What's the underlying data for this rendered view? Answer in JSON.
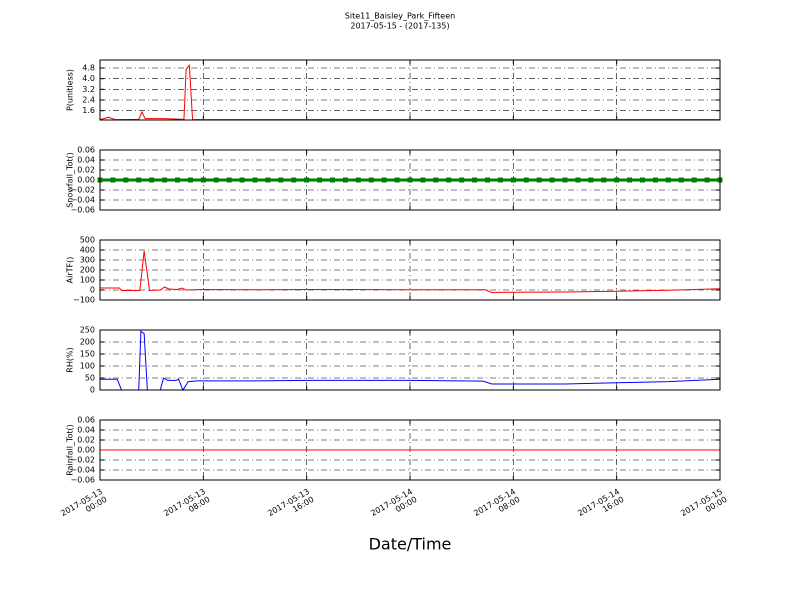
{
  "title": "Site11_Baisley_Park_Fifteen",
  "subtitle": "2017-05-15 - (2017-135)",
  "xlabel": "Date/Time",
  "xlim": [
    "2017-05-13 00:00",
    "2017-05-15 00:00"
  ],
  "xticks": [
    {
      "value": "2017-05-13 00:00",
      "label": "2017-05-13\n00:00"
    },
    {
      "value": "2017-05-13 08:00",
      "label": "2017-05-13\n08:00"
    },
    {
      "value": "2017-05-13 16:00",
      "label": "2017-05-13\n16:00"
    },
    {
      "value": "2017-05-14 00:00",
      "label": "2017-05-14\n00:00"
    },
    {
      "value": "2017-05-14 08:00",
      "label": "2017-05-14\n08:00"
    },
    {
      "value": "2017-05-14 16:00",
      "label": "2017-05-14\n16:00"
    },
    {
      "value": "2017-05-15 00:00",
      "label": "2017-05-15\n00:00"
    }
  ],
  "grid": true,
  "chart_data": [
    {
      "type": "line",
      "ylabel": "P(unitless)",
      "color": "#ff0000",
      "ylim": [
        0.9,
        5.4
      ],
      "yticks": [
        1.6,
        2.4,
        3.2,
        {
          "value": 4,
          "label": "4.0"
        },
        4.8
      ],
      "x": [
        "2017-05-13 00:00",
        "2017-05-13 00:40",
        "2017-05-13 01:10",
        "2017-05-13 03:00",
        "2017-05-13 03:15",
        "2017-05-13 03:30",
        "2017-05-13 05:00",
        "2017-05-13 06:30",
        "2017-05-13 06:40",
        "2017-05-13 06:55",
        "2017-05-13 07:10",
        "2017-05-14 00:00",
        "2017-05-15 00:00"
      ],
      "values": [
        0.93,
        1.1,
        0.93,
        0.95,
        1.5,
        1.0,
        1.0,
        0.95,
        4.7,
        5.0,
        0.93,
        0.93,
        0.93
      ]
    },
    {
      "type": "dotline",
      "ylabel": "Snowfall_Tot()",
      "color": "#007f00",
      "ylim": [
        -0.06,
        0.06
      ],
      "yticks": [
        {
          "value": -0.06,
          "label": "−0.06"
        },
        {
          "value": -0.04,
          "label": "−0.04"
        },
        {
          "value": -0.02,
          "label": "−0.02"
        },
        {
          "value": 0,
          "label": "0.00"
        },
        0.02,
        0.04,
        0.06
      ],
      "x": [
        "2017-05-13 00:00",
        "2017-05-13 01:00",
        "2017-05-13 02:00",
        "2017-05-13 03:00",
        "2017-05-13 04:00",
        "2017-05-13 05:00",
        "2017-05-13 06:00",
        "2017-05-13 07:00",
        "2017-05-13 08:00",
        "2017-05-13 09:00",
        "2017-05-13 10:00",
        "2017-05-13 11:00",
        "2017-05-13 12:00",
        "2017-05-13 13:00",
        "2017-05-13 14:00",
        "2017-05-13 15:00",
        "2017-05-13 16:00",
        "2017-05-13 17:00",
        "2017-05-13 18:00",
        "2017-05-13 19:00",
        "2017-05-13 20:00",
        "2017-05-13 21:00",
        "2017-05-13 22:00",
        "2017-05-13 23:00",
        "2017-05-14 00:00",
        "2017-05-14 01:00",
        "2017-05-14 02:00",
        "2017-05-14 03:00",
        "2017-05-14 04:00",
        "2017-05-14 05:00",
        "2017-05-14 06:00",
        "2017-05-14 07:00",
        "2017-05-14 08:00",
        "2017-05-14 09:00",
        "2017-05-14 10:00",
        "2017-05-14 11:00",
        "2017-05-14 12:00",
        "2017-05-14 13:00",
        "2017-05-14 14:00",
        "2017-05-14 15:00",
        "2017-05-14 16:00",
        "2017-05-14 17:00",
        "2017-05-14 18:00",
        "2017-05-14 19:00",
        "2017-05-14 20:00",
        "2017-05-14 21:00",
        "2017-05-14 22:00",
        "2017-05-14 23:00",
        "2017-05-15 00:00"
      ],
      "values": [
        0,
        0,
        0,
        0,
        0,
        0,
        0,
        0,
        0,
        0,
        0,
        0,
        0,
        0,
        0,
        0,
        0,
        0,
        0,
        0,
        0,
        0,
        0,
        0,
        0,
        0,
        0,
        0,
        0,
        0,
        0,
        0,
        0,
        0,
        0,
        0,
        0,
        0,
        0,
        0,
        0,
        0,
        0,
        0,
        0,
        0,
        0,
        0,
        0
      ]
    },
    {
      "type": "line",
      "ylabel": "AirTF()",
      "color": "#ff0000",
      "ylim": [
        -100,
        500
      ],
      "yticks": [
        {
          "value": -100,
          "label": "−100"
        },
        0,
        100,
        200,
        300,
        400,
        500
      ],
      "x": [
        "2017-05-13 00:00",
        "2017-05-13 01:30",
        "2017-05-13 01:40",
        "2017-05-13 03:05",
        "2017-05-13 03:25",
        "2017-05-13 03:50",
        "2017-05-13 04:40",
        "2017-05-13 05:00",
        "2017-05-13 05:20",
        "2017-05-13 06:00",
        "2017-05-13 06:20",
        "2017-05-13 06:40",
        "2017-05-13 08:00",
        "2017-05-13 12:00",
        "2017-05-13 16:00",
        "2017-05-13 20:00",
        "2017-05-14 00:00",
        "2017-05-14 05:50",
        "2017-05-14 06:20",
        "2017-05-14 08:00",
        "2017-05-14 12:00",
        "2017-05-14 16:00",
        "2017-05-14 20:00",
        "2017-05-15 00:00"
      ],
      "values": [
        20,
        20,
        -5,
        -5,
        390,
        -5,
        0,
        30,
        10,
        5,
        20,
        0,
        5,
        2,
        5,
        5,
        3,
        2,
        -25,
        -22,
        -20,
        -12,
        -2,
        12
      ]
    },
    {
      "type": "line",
      "ylabel": "RH(%)",
      "color": "#0000ff",
      "ylim": [
        0,
        250
      ],
      "yticks": [
        0,
        50,
        100,
        150,
        200,
        250
      ],
      "x": [
        "2017-05-13 00:00",
        "2017-05-13 01:20",
        "2017-05-13 01:40",
        "2017-05-13 03:00",
        "2017-05-13 03:10",
        "2017-05-13 03:25",
        "2017-05-13 03:40",
        "2017-05-13 04:40",
        "2017-05-13 04:55",
        "2017-05-13 05:15",
        "2017-05-13 05:55",
        "2017-05-13 06:05",
        "2017-05-13 06:25",
        "2017-05-13 06:50",
        "2017-05-13 07:30",
        "2017-05-13 12:00",
        "2017-05-13 16:00",
        "2017-05-13 20:00",
        "2017-05-14 00:00",
        "2017-05-14 05:40",
        "2017-05-14 06:20",
        "2017-05-14 12:00",
        "2017-05-14 16:00",
        "2017-05-14 20:00",
        "2017-05-15 00:00"
      ],
      "values": [
        45,
        45,
        0,
        0,
        245,
        235,
        0,
        0,
        50,
        40,
        40,
        45,
        0,
        35,
        38,
        38,
        40,
        40,
        40,
        37,
        25,
        25,
        30,
        35,
        45
      ]
    },
    {
      "type": "line",
      "ylabel": "Rainfall_Tot()",
      "color": "#ff0000",
      "ylim": [
        -0.06,
        0.06
      ],
      "yticks": [
        {
          "value": -0.06,
          "label": "−0.06"
        },
        {
          "value": -0.04,
          "label": "−0.04"
        },
        {
          "value": -0.02,
          "label": "−0.02"
        },
        {
          "value": 0,
          "label": "0.00"
        },
        0.02,
        0.04,
        0.06
      ],
      "x": [
        "2017-05-13 00:00",
        "2017-05-13 08:00",
        "2017-05-13 16:00",
        "2017-05-14 00:00",
        "2017-05-14 08:00",
        "2017-05-14 16:00",
        "2017-05-15 00:00"
      ],
      "values": [
        0,
        0,
        0,
        0,
        0,
        0,
        0
      ]
    }
  ]
}
